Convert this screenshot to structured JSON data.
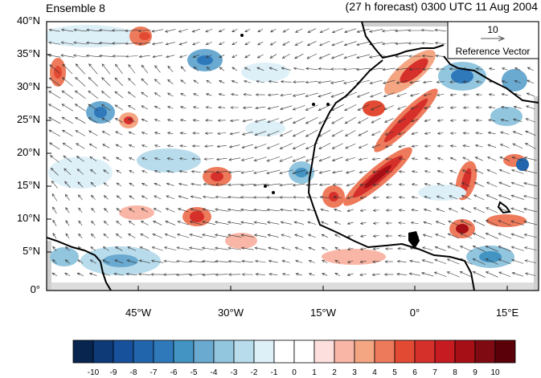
{
  "header": {
    "left_title": "Ensemble 8",
    "right_title": "(27 h forecast) 0300 UTC 11 Aug 2004"
  },
  "reference_vector": {
    "value": "10",
    "label": "Reference Vector"
  },
  "latitude_labels": [
    "40°N",
    "35°N",
    "30°N",
    "25°N",
    "20°N",
    "15°N",
    "10°N",
    "5°N",
    "0°"
  ],
  "longitude_labels": [
    "45°W",
    "30°W",
    "15°W",
    "0°",
    "15°E"
  ],
  "colorbar": {
    "labels": [
      "-10",
      "-9",
      "-8",
      "-7",
      "-6",
      "-5",
      "-4",
      "-3",
      "-2",
      "-1",
      "0",
      "1",
      "2",
      "3",
      "4",
      "5",
      "6",
      "7",
      "8",
      "9",
      "10"
    ],
    "colors": [
      "#08254f",
      "#0e3a78",
      "#17509b",
      "#2166ac",
      "#2f79bb",
      "#4393c3",
      "#6aa9d0",
      "#92c5de",
      "#b9dcec",
      "#ddf0f8",
      "#ffffff",
      "#ffffff",
      "#fde0dd",
      "#f9b6a6",
      "#f4a582",
      "#ee7a5c",
      "#e34a33",
      "#d6302b",
      "#c51b21",
      "#a50f15",
      "#7f0a12",
      "#5a0008"
    ]
  },
  "colors": {
    "land_mask": "#cfcfcf",
    "coast": "#000000",
    "vector": "#333333"
  }
}
